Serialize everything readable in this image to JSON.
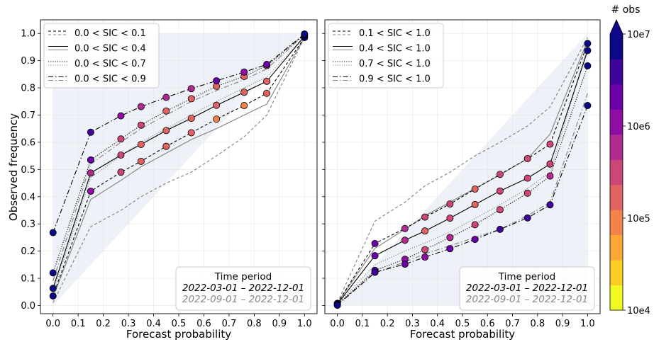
{
  "shared": {
    "ylabel": "Observed frequency",
    "xlabel": "Forecast probability",
    "xticks": [
      "0.0",
      "0.1",
      "0.2",
      "0.3",
      "0.4",
      "0.5",
      "0.6",
      "0.7",
      "0.8",
      "0.9",
      "1.0"
    ],
    "yticks": [
      "0.0",
      "0.1",
      "0.2",
      "0.3",
      "0.4",
      "0.5",
      "0.6",
      "0.7",
      "0.8",
      "0.9",
      "1.0"
    ],
    "info_title": "Time period",
    "period_main": "2022-03-01 – 2022-12-01",
    "period_sub": "2022-09-01 – 2022-12-01",
    "colors": {
      "black": "#000000",
      "gray": "#888888",
      "skill_shade": "#eef1f8"
    }
  },
  "colorbar": {
    "title": "# obs",
    "tick_labels": [
      "10e7",
      "10e6",
      "10e5",
      "10e4"
    ],
    "colors": [
      "#f0f921",
      "#fccd25",
      "#fca636",
      "#f2844b",
      "#e16462",
      "#cc4778",
      "#b12a90",
      "#8f0da4",
      "#6a00a8",
      "#3e049c",
      "#0d0887"
    ],
    "extend_color": "#0d0887"
  },
  "chart_data": [
    {
      "type": "line",
      "xlabel": "Forecast probability",
      "ylabel": "Observed frequency",
      "xlim": [
        -0.05,
        1.05
      ],
      "ylim": [
        -0.03,
        1.05
      ],
      "legend_position": "top-left",
      "legend": [
        "0.0 < SIC < 0.1",
        "0.0 < SIC < 0.4",
        "0.0 < SIC < 0.7",
        "0.0 < SIC < 0.9"
      ],
      "series": [
        {
          "name": "0.0 < SIC < 0.1",
          "period": "2022-03-01 – 2022-12-01",
          "dash": "dashed",
          "x": [
            0.0,
            0.15,
            0.27,
            0.35,
            0.45,
            0.55,
            0.65,
            0.76,
            0.85,
            1.0
          ],
          "y": [
            0.035,
            0.42,
            0.49,
            0.53,
            0.585,
            0.635,
            0.685,
            0.735,
            0.78,
            0.985
          ],
          "log_obs": [
            7.0,
            6.1,
            5.5,
            5.3,
            5.2,
            5.1,
            5.0,
            5.0,
            5.1,
            7.0
          ]
        },
        {
          "name": "0.0 < SIC < 0.4",
          "period": "2022-03-01 – 2022-12-01",
          "dash": "solid",
          "x": [
            0.0,
            0.15,
            0.27,
            0.35,
            0.45,
            0.55,
            0.65,
            0.76,
            0.85,
            1.0
          ],
          "y": [
            0.063,
            0.487,
            0.553,
            0.592,
            0.643,
            0.688,
            0.736,
            0.784,
            0.824,
            0.99
          ],
          "log_obs": [
            7.0,
            5.8,
            5.5,
            5.3,
            5.2,
            5.1,
            5.1,
            5.1,
            5.1,
            7.0
          ]
        },
        {
          "name": "0.0 < SIC < 0.7",
          "period": "2022-03-01 – 2022-12-01",
          "dash": "dotted",
          "x": [
            0.0,
            0.15,
            0.27,
            0.35,
            0.45,
            0.55,
            0.65,
            0.76,
            0.85,
            1.0
          ],
          "y": [
            0.12,
            0.535,
            0.612,
            0.663,
            0.715,
            0.76,
            0.806,
            0.842,
            0.882,
            0.995
          ],
          "log_obs": [
            7.0,
            6.4,
            5.6,
            5.5,
            5.3,
            5.3,
            5.2,
            5.2,
            5.4,
            7.0
          ]
        },
        {
          "name": "0.0 < SIC < 0.9",
          "period": "2022-03-01 – 2022-12-01",
          "dash": "dashdot",
          "x": [
            0.0,
            0.15,
            0.27,
            0.35,
            0.45,
            0.55,
            0.65,
            0.76,
            0.85,
            1.0
          ],
          "y": [
            0.268,
            0.637,
            0.697,
            0.731,
            0.765,
            0.797,
            0.826,
            0.858,
            0.886,
            0.998
          ],
          "log_obs": [
            7.0,
            6.5,
            6.0,
            5.9,
            5.9,
            5.8,
            6.3,
            6.0,
            6.4,
            7.0
          ]
        },
        {
          "name": "0.0 < SIC < 0.1",
          "period": "2022-09-01 – 2022-12-01",
          "dash": "dashed",
          "x": [
            0.0,
            0.15,
            0.27,
            0.35,
            0.45,
            0.55,
            0.65,
            0.76,
            0.85,
            1.0
          ],
          "y": [
            0.01,
            0.29,
            0.35,
            0.4,
            0.45,
            0.49,
            0.55,
            0.62,
            0.7,
            0.985
          ]
        },
        {
          "name": "0.0 < SIC < 0.4",
          "period": "2022-09-01 – 2022-12-01",
          "dash": "solid",
          "x": [
            0.0,
            0.15,
            0.27,
            0.35,
            0.45,
            0.55,
            0.65,
            0.76,
            0.85,
            1.0
          ],
          "y": [
            0.03,
            0.39,
            0.46,
            0.51,
            0.56,
            0.61,
            0.65,
            0.7,
            0.74,
            0.985
          ]
        },
        {
          "name": "0.0 < SIC < 0.7",
          "period": "2022-09-01 – 2022-12-01",
          "dash": "dotted",
          "x": [
            0.0,
            0.15,
            0.27,
            0.35,
            0.45,
            0.55,
            0.65,
            0.76,
            0.85,
            1.0
          ],
          "y": [
            0.05,
            0.47,
            0.55,
            0.6,
            0.65,
            0.7,
            0.75,
            0.8,
            0.84,
            0.99
          ]
        },
        {
          "name": "0.0 < SIC < 0.9",
          "period": "2022-09-01 – 2022-12-01",
          "dash": "dashdot",
          "x": [
            0.0,
            0.15,
            0.27,
            0.35,
            0.45,
            0.55,
            0.65,
            0.76,
            0.85,
            1.0
          ],
          "y": [
            0.09,
            0.52,
            0.6,
            0.65,
            0.7,
            0.75,
            0.79,
            0.83,
            0.87,
            0.995
          ]
        }
      ]
    },
    {
      "type": "line",
      "xlabel": "Forecast probability",
      "xlim": [
        -0.05,
        1.05
      ],
      "ylim": [
        -0.03,
        1.05
      ],
      "legend_position": "top-left",
      "legend": [
        "0.1 < SIC < 1.0",
        "0.4 < SIC < 1.0",
        "0.7 < SIC < 1.0",
        "0.9 < SIC < 1.0"
      ],
      "series": [
        {
          "name": "0.1 < SIC < 1.0",
          "period": "2022-03-01 – 2022-12-01",
          "dash": "dashed",
          "x": [
            0.0,
            0.15,
            0.27,
            0.35,
            0.45,
            0.55,
            0.65,
            0.76,
            0.85,
            1.0
          ],
          "y": [
            0.008,
            0.228,
            0.283,
            0.325,
            0.373,
            0.428,
            0.482,
            0.54,
            0.593,
            0.963
          ],
          "log_obs": [
            7.0,
            6.4,
            5.8,
            5.6,
            5.4,
            5.1,
            5.4,
            5.4,
            5.4,
            7.0
          ]
        },
        {
          "name": "0.4 < SIC < 1.0",
          "period": "2022-03-01 – 2022-12-01",
          "dash": "solid",
          "x": [
            0.0,
            0.15,
            0.27,
            0.35,
            0.45,
            0.55,
            0.65,
            0.76,
            0.85,
            1.0
          ],
          "y": [
            0.005,
            0.183,
            0.24,
            0.274,
            0.321,
            0.371,
            0.421,
            0.468,
            0.52,
            0.937
          ],
          "log_obs": [
            7.0,
            6.4,
            5.8,
            5.3,
            5.6,
            5.2,
            5.6,
            5.6,
            5.4,
            7.0
          ]
        },
        {
          "name": "0.7 < SIC < 1.0",
          "period": "2022-03-01 – 2022-12-01",
          "dash": "dotted",
          "x": [
            0.0,
            0.15,
            0.27,
            0.35,
            0.45,
            0.55,
            0.65,
            0.76,
            0.85,
            1.0
          ],
          "y": [
            0.003,
            0.129,
            0.17,
            0.205,
            0.25,
            0.297,
            0.352,
            0.413,
            0.476,
            0.881
          ],
          "log_obs": [
            7.0,
            6.6,
            6.0,
            5.6,
            5.8,
            5.6,
            5.5,
            5.5,
            5.8,
            7.0
          ]
        },
        {
          "name": "0.9 < SIC < 1.0",
          "period": "2022-03-01 – 2022-12-01",
          "dash": "dashdot",
          "x": [
            0.0,
            0.15,
            0.27,
            0.35,
            0.45,
            0.55,
            0.65,
            0.76,
            0.85,
            1.0
          ],
          "y": [
            0.001,
            0.122,
            0.152,
            0.178,
            0.209,
            0.243,
            0.28,
            0.322,
            0.37,
            0.735
          ],
          "log_obs": [
            7.0,
            6.5,
            6.2,
            6.1,
            6.2,
            6.4,
            6.5,
            6.5,
            6.5,
            7.0
          ]
        },
        {
          "name": "0.1 < SIC < 1.0",
          "period": "2022-09-01 – 2022-12-01",
          "dash": "dashed",
          "x": [
            0.0,
            0.15,
            0.27,
            0.35,
            0.45,
            0.55,
            0.65,
            0.76,
            0.85,
            1.0
          ],
          "y": [
            0.01,
            0.31,
            0.38,
            0.44,
            0.49,
            0.55,
            0.6,
            0.66,
            0.73,
            0.985
          ]
        },
        {
          "name": "0.4 < SIC < 1.0",
          "period": "2022-09-01 – 2022-12-01",
          "dash": "solid",
          "x": [
            0.0,
            0.15,
            0.27,
            0.35,
            0.45,
            0.55,
            0.65,
            0.76,
            0.85,
            1.0
          ],
          "y": [
            0.008,
            0.21,
            0.28,
            0.33,
            0.38,
            0.43,
            0.48,
            0.54,
            0.63,
            0.975
          ]
        },
        {
          "name": "0.7 < SIC < 1.0",
          "period": "2022-09-01 – 2022-12-01",
          "dash": "dotted",
          "x": [
            0.0,
            0.15,
            0.27,
            0.35,
            0.45,
            0.55,
            0.65,
            0.76,
            0.85,
            1.0
          ],
          "y": [
            0.005,
            0.15,
            0.2,
            0.23,
            0.27,
            0.32,
            0.37,
            0.43,
            0.49,
            0.95
          ]
        },
        {
          "name": "0.9 < SIC < 1.0",
          "period": "2022-09-01 – 2022-12-01",
          "dash": "dashdot",
          "x": [
            0.0,
            0.15,
            0.27,
            0.35,
            0.45,
            0.55,
            0.65,
            0.76,
            0.85,
            1.0
          ],
          "y": [
            0.003,
            0.12,
            0.16,
            0.19,
            0.22,
            0.25,
            0.28,
            0.33,
            0.38,
            0.78
          ]
        }
      ]
    }
  ]
}
